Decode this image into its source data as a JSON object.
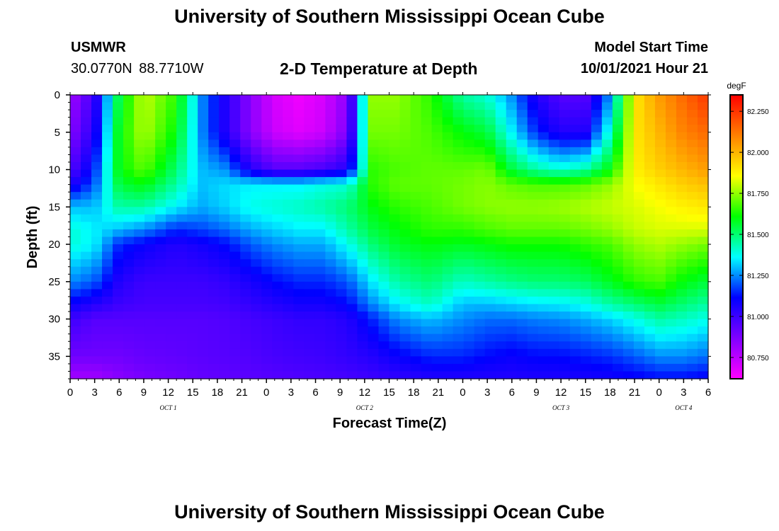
{
  "header": {
    "title": "University of Southern Mississippi Ocean Cube",
    "station": "USMWR",
    "coordinates": "30.0770N  88.7710W",
    "plot_title": "2-D Temperature at Depth",
    "start_label": "Model Start Time",
    "start_value": "10/01/2021 Hour 21"
  },
  "footer": {
    "title": "University of Southern Mississippi Ocean Cube"
  },
  "chart_data": {
    "type": "heatmap",
    "xlabel": "Forecast Time(Z)",
    "ylabel": "Depth (ft)",
    "x_hours": [
      0,
      3,
      6,
      9,
      12,
      15,
      18,
      21,
      24,
      27,
      30,
      33,
      36,
      39,
      42,
      45,
      48,
      51,
      54,
      57,
      60,
      63,
      66,
      69,
      72,
      75,
      78
    ],
    "x_tick_labels": [
      "0",
      "3",
      "6",
      "9",
      "12",
      "15",
      "18",
      "21",
      "0",
      "3",
      "6",
      "9",
      "12",
      "15",
      "18",
      "21",
      "0",
      "3",
      "6",
      "9",
      "12",
      "15",
      "18",
      "21",
      "0",
      "3",
      "6"
    ],
    "date_labels": [
      {
        "text": "OCT 1",
        "hour": 12
      },
      {
        "text": "OCT 2",
        "hour": 36
      },
      {
        "text": "OCT 3",
        "hour": 60
      },
      {
        "text": "OCT 4",
        "hour": 75
      }
    ],
    "xlim": [
      0,
      78
    ],
    "ylim": [
      38,
      0
    ],
    "y_ticks": [
      0,
      5,
      10,
      15,
      20,
      25,
      30,
      35
    ],
    "colorbar": {
      "unit": "degF",
      "min": 80.62,
      "max": 82.35,
      "ticks": [
        82.25,
        82.0,
        81.75,
        81.5,
        81.25,
        81.0,
        80.75
      ],
      "tick_labels": [
        "82.250",
        "82.000",
        "81.750",
        "81.500",
        "81.250",
        "81.000",
        "80.750"
      ],
      "colors": [
        "#ff00ff",
        "#8000ff",
        "#0000ff",
        "#00ffff",
        "#00ff00",
        "#ffff00",
        "#ff8000",
        "#ff0000"
      ]
    },
    "depths": [
      0,
      5,
      10,
      12,
      15,
      18,
      20,
      25,
      28,
      30,
      35,
      38
    ],
    "temperature_columns": [
      {
        "hour": 0,
        "temps": [
          80.8,
          80.85,
          80.95,
          81.05,
          81.3,
          81.4,
          81.4,
          81.25,
          81.1,
          81.0,
          80.9,
          80.8
        ]
      },
      {
        "hour": 3,
        "temps": [
          81.0,
          81.05,
          81.15,
          81.2,
          81.3,
          81.35,
          81.35,
          81.2,
          81.05,
          80.95,
          80.9,
          80.8
        ]
      },
      {
        "hour": 6,
        "temps": [
          81.55,
          81.6,
          81.6,
          81.55,
          81.45,
          81.3,
          81.15,
          81.05,
          81.0,
          80.95,
          80.9,
          80.85
        ]
      },
      {
        "hour": 9,
        "temps": [
          81.8,
          81.78,
          81.7,
          81.6,
          81.45,
          81.25,
          81.1,
          81.0,
          80.98,
          80.95,
          80.92,
          80.88
        ]
      },
      {
        "hour": 13,
        "temps": [
          81.65,
          81.6,
          81.5,
          81.45,
          81.35,
          81.15,
          81.05,
          81.0,
          80.98,
          80.95,
          80.93,
          80.9
        ]
      },
      {
        "hour": 16,
        "temps": [
          81.25,
          81.25,
          81.3,
          81.3,
          81.28,
          81.18,
          81.08,
          81.0,
          80.98,
          80.95,
          80.94,
          80.92
        ]
      },
      {
        "hour": 19,
        "temps": [
          81.05,
          81.05,
          81.25,
          81.33,
          81.32,
          81.22,
          81.12,
          81.02,
          80.99,
          80.96,
          80.95,
          80.93
        ]
      },
      {
        "hour": 22,
        "temps": [
          80.85,
          80.85,
          81.05,
          81.35,
          81.38,
          81.28,
          81.2,
          81.07,
          81.02,
          80.98,
          80.96,
          80.94
        ]
      },
      {
        "hour": 25,
        "temps": [
          80.7,
          80.72,
          80.95,
          81.35,
          81.4,
          81.32,
          81.25,
          81.12,
          81.05,
          81.0,
          80.98,
          80.95
        ]
      },
      {
        "hour": 28,
        "temps": [
          80.65,
          80.68,
          80.95,
          81.35,
          81.42,
          81.35,
          81.28,
          81.15,
          81.08,
          81.02,
          80.99,
          80.96
        ]
      },
      {
        "hour": 31,
        "temps": [
          80.7,
          80.72,
          80.98,
          81.38,
          81.45,
          81.35,
          81.28,
          81.15,
          81.08,
          81.02,
          81.0,
          80.97
        ]
      },
      {
        "hour": 34,
        "temps": [
          80.85,
          80.88,
          81.05,
          81.4,
          81.5,
          81.45,
          81.38,
          81.2,
          81.12,
          81.05,
          81.02,
          80.98
        ]
      },
      {
        "hour": 37,
        "temps": [
          81.75,
          81.72,
          81.65,
          81.65,
          81.6,
          81.55,
          81.5,
          81.35,
          81.25,
          81.15,
          81.05,
          81.0
        ]
      },
      {
        "hour": 40,
        "temps": [
          81.75,
          81.72,
          81.68,
          81.7,
          81.65,
          81.6,
          81.57,
          81.45,
          81.35,
          81.25,
          81.1,
          81.02
        ]
      },
      {
        "hour": 44,
        "temps": [
          81.65,
          81.68,
          81.7,
          81.7,
          81.68,
          81.65,
          81.6,
          81.5,
          81.42,
          81.3,
          81.15,
          81.05
        ]
      },
      {
        "hour": 48,
        "temps": [
          81.45,
          81.6,
          81.7,
          81.72,
          81.72,
          81.65,
          81.58,
          81.42,
          81.3,
          81.25,
          81.15,
          81.05
        ]
      },
      {
        "hour": 51,
        "temps": [
          81.4,
          81.55,
          81.72,
          81.74,
          81.74,
          81.68,
          81.6,
          81.45,
          81.3,
          81.22,
          81.12,
          81.05
        ]
      },
      {
        "hour": 54,
        "temps": [
          81.25,
          81.35,
          81.55,
          81.7,
          81.75,
          81.7,
          81.62,
          81.48,
          81.32,
          81.22,
          81.1,
          81.05
        ]
      },
      {
        "hour": 57,
        "temps": [
          81.05,
          81.15,
          81.45,
          81.68,
          81.75,
          81.7,
          81.62,
          81.5,
          81.34,
          81.24,
          81.12,
          81.06
        ]
      },
      {
        "hour": 60,
        "temps": [
          80.95,
          81.05,
          81.4,
          81.68,
          81.76,
          81.7,
          81.62,
          81.5,
          81.35,
          81.25,
          81.12,
          81.06
        ]
      },
      {
        "hour": 63,
        "temps": [
          80.95,
          81.05,
          81.45,
          81.7,
          81.78,
          81.72,
          81.65,
          81.52,
          81.38,
          81.28,
          81.14,
          81.07
        ]
      },
      {
        "hour": 66,
        "temps": [
          81.25,
          81.4,
          81.6,
          81.75,
          81.8,
          81.75,
          81.68,
          81.58,
          81.45,
          81.32,
          81.16,
          81.08
        ]
      },
      {
        "hour": 69,
        "temps": [
          81.9,
          81.9,
          81.88,
          81.85,
          81.82,
          81.8,
          81.75,
          81.65,
          81.5,
          81.38,
          81.2,
          81.1
        ]
      },
      {
        "hour": 72,
        "temps": [
          82.05,
          82.0,
          81.95,
          81.9,
          81.85,
          81.82,
          81.78,
          81.68,
          81.55,
          81.45,
          81.25,
          81.12
        ]
      },
      {
        "hour": 75,
        "temps": [
          82.15,
          82.1,
          82.0,
          81.95,
          81.88,
          81.82,
          81.75,
          81.6,
          81.5,
          81.42,
          81.25,
          81.12
        ]
      },
      {
        "hour": 78,
        "temps": [
          82.25,
          82.15,
          82.05,
          81.98,
          81.9,
          81.82,
          81.72,
          81.55,
          81.45,
          81.38,
          81.22,
          81.1
        ]
      }
    ]
  }
}
